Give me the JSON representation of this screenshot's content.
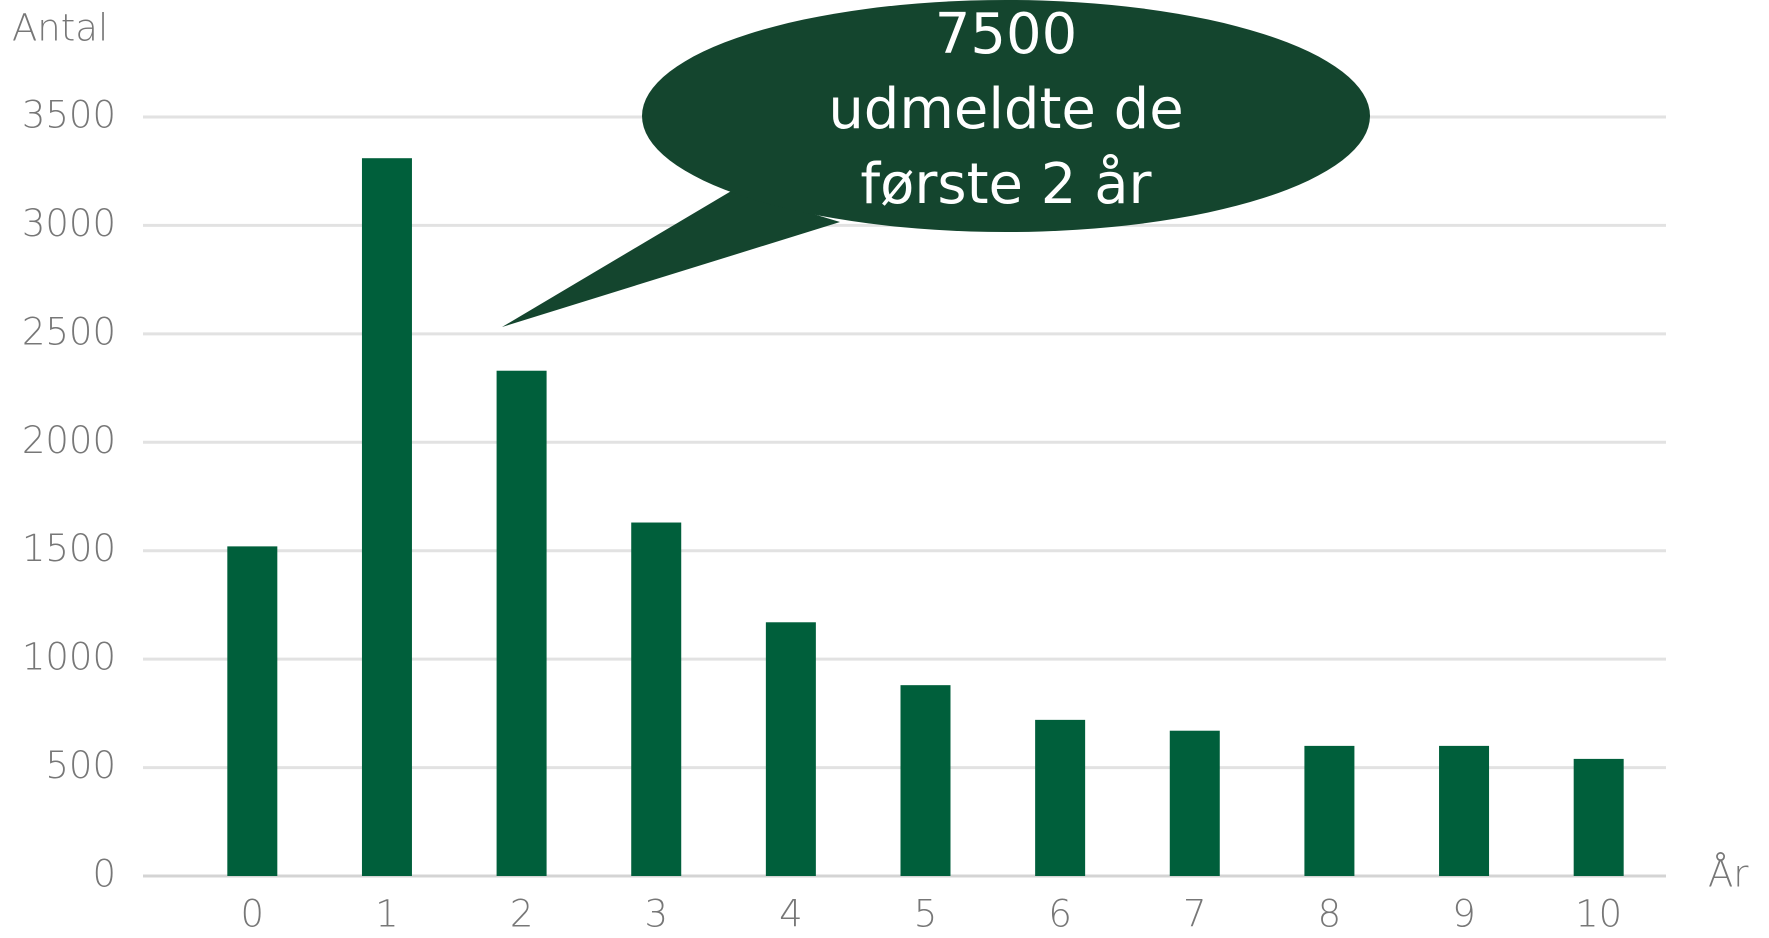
{
  "chart_data": {
    "type": "bar",
    "y_label": "Antal",
    "x_label": "År",
    "categories": [
      "0",
      "1",
      "2",
      "3",
      "4",
      "5",
      "6",
      "7",
      "8",
      "9",
      "10"
    ],
    "values": [
      1520,
      3310,
      2330,
      1630,
      1170,
      880,
      720,
      670,
      600,
      600,
      540
    ],
    "color": "#005f3b",
    "ylim": [
      0,
      3500
    ],
    "yticks": [
      0,
      500,
      1000,
      1500,
      2000,
      2500,
      3000,
      3500
    ],
    "grid": true,
    "annotation": [
      "7500",
      "udmeldte de",
      "første 2 år"
    ]
  }
}
